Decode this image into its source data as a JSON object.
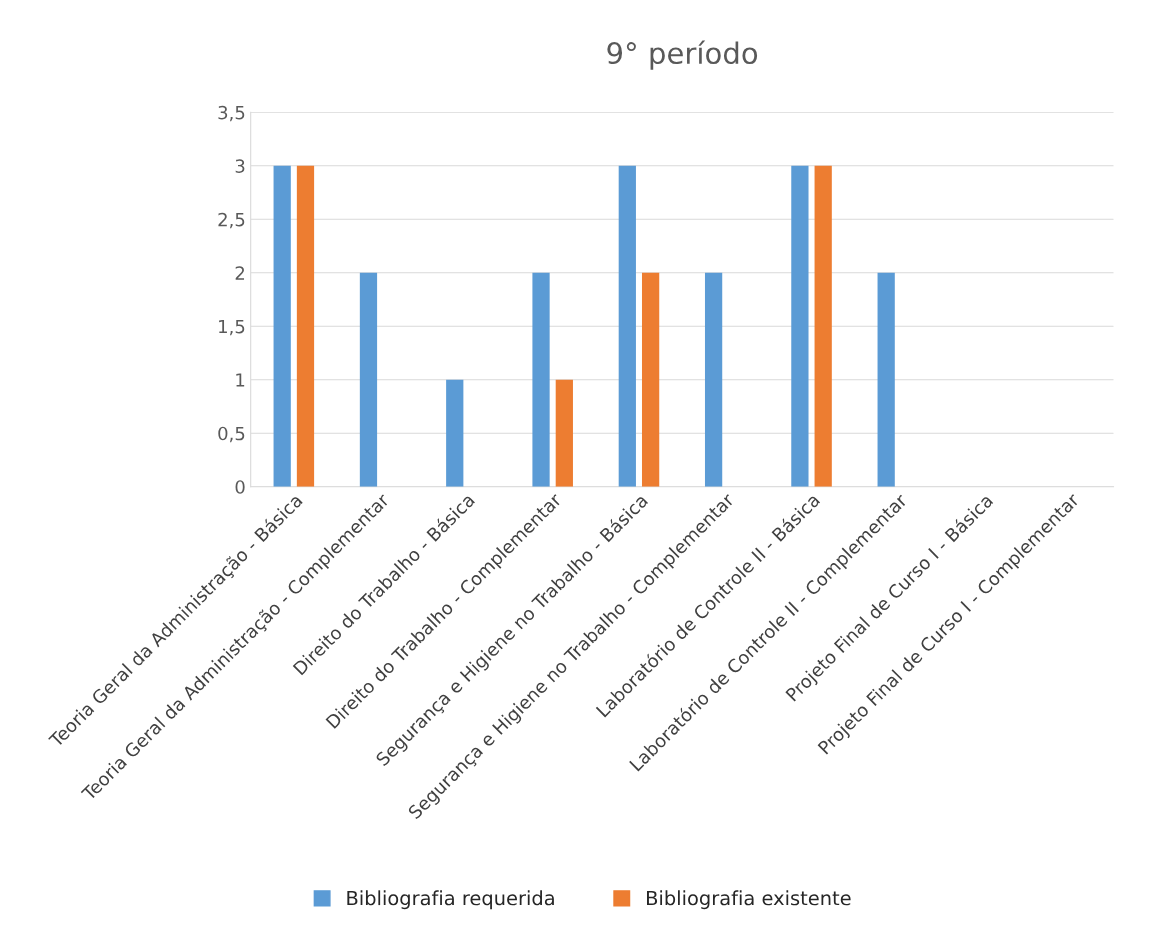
{
  "chart_data": {
    "type": "bar",
    "title": "9° período",
    "categories": [
      "Teoria Geral da Administração - Básica",
      "Teoria Geral da Administração - Complementar",
      "Direito do Trabalho - Básica",
      "Direito do Trabalho - Complementar",
      "Segurança e Higiene no Trabalho - Básica",
      "Segurança e Higiene no Trabalho - Complementar",
      "Laboratório de Controle II - Básica",
      "Laboratório de Controle II - Complementar",
      "Projeto Final de Curso I - Básica",
      "Projeto Final de Curso I - Complementar"
    ],
    "series": [
      {
        "name": "Bibliografia requerida",
        "color": "#5b9bd5",
        "values": [
          3,
          2,
          1,
          2,
          3,
          2,
          3,
          2,
          0,
          0
        ]
      },
      {
        "name": "Bibliografia existente",
        "color": "#ed7d31",
        "values": [
          3,
          0,
          0,
          1,
          2,
          0,
          3,
          0,
          0,
          0
        ]
      }
    ],
    "ylim": [
      0,
      3.5
    ],
    "yticks": [
      0,
      {
        "value": 0.5,
        "label": "0,5"
      },
      1,
      {
        "value": 1.5,
        "label": "1,5"
      },
      2,
      {
        "value": 2.5,
        "label": "2,5"
      },
      3,
      {
        "value": 3.5,
        "label": "3,5"
      }
    ],
    "grid": "y",
    "legend": "bottom"
  }
}
